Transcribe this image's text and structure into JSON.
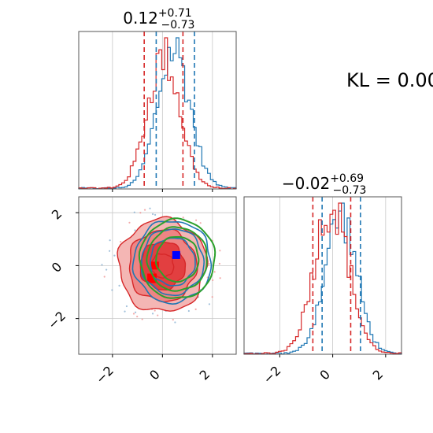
{
  "chart_data": {
    "type": "corner",
    "axis_ranges": {
      "x1": [
        -3.35,
        2.95
      ],
      "x2": [
        -3.35,
        2.6
      ]
    },
    "ticks": {
      "x1": [
        "−2",
        "0",
        "2"
      ],
      "x2": [
        "−2",
        "0",
        "2"
      ],
      "y_2d": [
        "2",
        "0",
        "−2"
      ],
      "x1_values": [
        -2,
        0,
        2
      ],
      "x2_values": [
        -2,
        0,
        2
      ],
      "y_2d_values": [
        2,
        0,
        -2
      ]
    },
    "grid": true,
    "annotation": "KL = 0.00",
    "marginals": [
      {
        "param": "x1",
        "title": {
          "median": "0.12",
          "upper": "+0.71",
          "lower": "−0.73"
        },
        "red_quantiles": [
          -0.73,
          0.82
        ],
        "blue_quantiles": [
          -0.25,
          1.28
        ],
        "red_mu": 0.05,
        "red_sigma": 0.65,
        "blue_mu": 0.45,
        "blue_sigma": 0.65
      },
      {
        "param": "x2",
        "title": {
          "median": "−0.02",
          "upper": "+0.69",
          "lower": "−0.73"
        },
        "red_quantiles": [
          -0.75,
          0.68
        ],
        "blue_quantiles": [
          -0.4,
          1.05
        ],
        "red_mu": -0.05,
        "red_sigma": 0.65,
        "blue_mu": 0.3,
        "blue_sigma": 0.6
      }
    ],
    "joint": {
      "red_center": [
        0.0,
        0.0
      ],
      "red_levels_sigma": [
        0.45,
        0.9,
        1.35,
        1.75
      ],
      "blue_center": [
        0.4,
        0.15
      ],
      "blue_levels_sigma": [
        0.9,
        1.25,
        1.55
      ],
      "green_center": [
        0.6,
        0.25
      ],
      "green_levels_sigma": [
        0.85,
        1.2,
        1.5
      ],
      "red_marker": [
        -0.3,
        0.0
      ],
      "blue_marker": [
        0.55,
        0.4
      ]
    },
    "colors": {
      "red": "#d62728",
      "red_fill_light": "#f4b6b4",
      "red_fill_mid": "#ee8584",
      "red_fill_dark": "#e23f40",
      "blue": "#1f77b4",
      "green": "#2ca02c",
      "marker_red": "#ff0000",
      "marker_blue": "#0000ff",
      "grid": "#c8c8c8"
    }
  }
}
